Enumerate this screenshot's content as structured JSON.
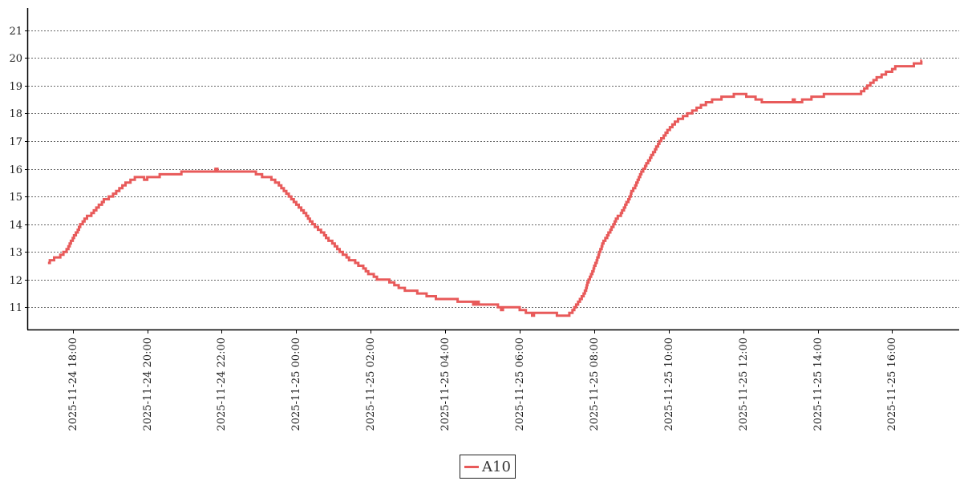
{
  "chart_data": {
    "type": "line",
    "title": "",
    "xlabel": "",
    "ylabel": "",
    "ylim": [
      10.2,
      21.8
    ],
    "xlim": [
      "2025-11-24 16:48",
      "2025-11-25 17:48"
    ],
    "yticks": [
      11,
      12,
      13,
      14,
      15,
      16,
      17,
      18,
      19,
      20,
      21
    ],
    "xticks": [
      "2025-11-24 18:00",
      "2025-11-24 20:00",
      "2025-11-24 22:00",
      "2025-11-25 00:00",
      "2025-11-25 02:00",
      "2025-11-25 04:00",
      "2025-11-25 06:00",
      "2025-11-25 08:00",
      "2025-11-25 10:00",
      "2025-11-25 12:00",
      "2025-11-25 14:00",
      "2025-11-25 16:00"
    ],
    "grid": "horizontal dotted",
    "legend_position": "bottom-center",
    "series": [
      {
        "name": "A10",
        "color": "#e85a5a",
        "step": true,
        "points": [
          [
            "2025-11-24 17:20",
            12.6
          ],
          [
            "2025-11-24 17:23",
            12.7
          ],
          [
            "2025-11-24 17:30",
            12.8
          ],
          [
            "2025-11-24 17:40",
            12.9
          ],
          [
            "2025-11-24 17:45",
            13.0
          ],
          [
            "2025-11-24 17:50",
            13.1
          ],
          [
            "2025-11-24 17:53",
            13.2
          ],
          [
            "2025-11-24 17:55",
            13.3
          ],
          [
            "2025-11-24 17:57",
            13.4
          ],
          [
            "2025-11-24 18:00",
            13.5
          ],
          [
            "2025-11-24 18:02",
            13.6
          ],
          [
            "2025-11-24 18:05",
            13.7
          ],
          [
            "2025-11-24 18:08",
            13.8
          ],
          [
            "2025-11-24 18:10",
            13.9
          ],
          [
            "2025-11-24 18:12",
            14.0
          ],
          [
            "2025-11-24 18:16",
            14.1
          ],
          [
            "2025-11-24 18:19",
            14.2
          ],
          [
            "2025-11-24 18:23",
            14.3
          ],
          [
            "2025-11-24 18:30",
            14.4
          ],
          [
            "2025-11-24 18:34",
            14.5
          ],
          [
            "2025-11-24 18:38",
            14.6
          ],
          [
            "2025-11-24 18:42",
            14.7
          ],
          [
            "2025-11-24 18:47",
            14.8
          ],
          [
            "2025-11-24 18:50",
            14.9
          ],
          [
            "2025-11-24 18:58",
            15.0
          ],
          [
            "2025-11-24 19:05",
            15.1
          ],
          [
            "2025-11-24 19:10",
            15.2
          ],
          [
            "2025-11-24 19:15",
            15.3
          ],
          [
            "2025-11-24 19:20",
            15.4
          ],
          [
            "2025-11-24 19:25",
            15.5
          ],
          [
            "2025-11-24 19:33",
            15.6
          ],
          [
            "2025-11-24 19:40",
            15.7
          ],
          [
            "2025-11-24 19:55",
            15.6
          ],
          [
            "2025-11-24 20:00",
            15.7
          ],
          [
            "2025-11-24 20:20",
            15.8
          ],
          [
            "2025-11-24 20:55",
            15.9
          ],
          [
            "2025-11-24 21:50",
            16.0
          ],
          [
            "2025-11-24 21:53",
            15.9
          ],
          [
            "2025-11-24 22:55",
            15.8
          ],
          [
            "2025-11-24 23:05",
            15.7
          ],
          [
            "2025-11-24 23:20",
            15.6
          ],
          [
            "2025-11-24 23:26",
            15.5
          ],
          [
            "2025-11-24 23:32",
            15.4
          ],
          [
            "2025-11-24 23:36",
            15.3
          ],
          [
            "2025-11-24 23:40",
            15.2
          ],
          [
            "2025-11-24 23:44",
            15.1
          ],
          [
            "2025-11-24 23:48",
            15.0
          ],
          [
            "2025-11-24 23:52",
            14.9
          ],
          [
            "2025-11-24 23:56",
            14.8
          ],
          [
            "2025-11-25 00:00",
            14.7
          ],
          [
            "2025-11-25 00:04",
            14.6
          ],
          [
            "2025-11-25 00:08",
            14.5
          ],
          [
            "2025-11-25 00:12",
            14.4
          ],
          [
            "2025-11-25 00:16",
            14.3
          ],
          [
            "2025-11-25 00:19",
            14.2
          ],
          [
            "2025-11-25 00:22",
            14.1
          ],
          [
            "2025-11-25 00:26",
            14.0
          ],
          [
            "2025-11-25 00:30",
            13.9
          ],
          [
            "2025-11-25 00:35",
            13.8
          ],
          [
            "2025-11-25 00:40",
            13.7
          ],
          [
            "2025-11-25 00:45",
            13.6
          ],
          [
            "2025-11-25 00:48",
            13.5
          ],
          [
            "2025-11-25 00:52",
            13.4
          ],
          [
            "2025-11-25 00:58",
            13.3
          ],
          [
            "2025-11-25 01:02",
            13.2
          ],
          [
            "2025-11-25 01:06",
            13.1
          ],
          [
            "2025-11-25 01:10",
            13.0
          ],
          [
            "2025-11-25 01:15",
            12.9
          ],
          [
            "2025-11-25 01:21",
            12.8
          ],
          [
            "2025-11-25 01:25",
            12.7
          ],
          [
            "2025-11-25 01:35",
            12.6
          ],
          [
            "2025-11-25 01:40",
            12.5
          ],
          [
            "2025-11-25 01:48",
            12.4
          ],
          [
            "2025-11-25 01:52",
            12.3
          ],
          [
            "2025-11-25 01:56",
            12.2
          ],
          [
            "2025-11-25 02:05",
            12.1
          ],
          [
            "2025-11-25 02:10",
            12.0
          ],
          [
            "2025-11-25 02:30",
            11.9
          ],
          [
            "2025-11-25 02:38",
            11.8
          ],
          [
            "2025-11-25 02:45",
            11.7
          ],
          [
            "2025-11-25 02:55",
            11.6
          ],
          [
            "2025-11-25 03:15",
            11.5
          ],
          [
            "2025-11-25 03:30",
            11.4
          ],
          [
            "2025-11-25 03:45",
            11.3
          ],
          [
            "2025-11-25 04:20",
            11.2
          ],
          [
            "2025-11-25 04:45",
            11.1
          ],
          [
            "2025-11-25 04:48",
            11.2
          ],
          [
            "2025-11-25 04:50",
            11.1
          ],
          [
            "2025-11-25 04:52",
            11.2
          ],
          [
            "2025-11-25 04:54",
            11.1
          ],
          [
            "2025-11-25 05:25",
            11.0
          ],
          [
            "2025-11-25 05:30",
            10.9
          ],
          [
            "2025-11-25 05:33",
            11.0
          ],
          [
            "2025-11-25 06:00",
            10.9
          ],
          [
            "2025-11-25 06:10",
            10.8
          ],
          [
            "2025-11-25 06:20",
            10.7
          ],
          [
            "2025-11-25 06:23",
            10.8
          ],
          [
            "2025-11-25 06:45",
            10.8
          ],
          [
            "2025-11-25 07:00",
            10.7
          ],
          [
            "2025-11-25 07:20",
            10.8
          ],
          [
            "2025-11-25 07:25",
            10.9
          ],
          [
            "2025-11-25 07:28",
            11.0
          ],
          [
            "2025-11-25 07:31",
            11.1
          ],
          [
            "2025-11-25 07:34",
            11.2
          ],
          [
            "2025-11-25 07:37",
            11.3
          ],
          [
            "2025-11-25 07:40",
            11.4
          ],
          [
            "2025-11-25 07:43",
            11.5
          ],
          [
            "2025-11-25 07:45",
            11.6
          ],
          [
            "2025-11-25 07:47",
            11.7
          ],
          [
            "2025-11-25 07:48",
            11.8
          ],
          [
            "2025-11-25 07:49",
            11.9
          ],
          [
            "2025-11-25 07:51",
            12.0
          ],
          [
            "2025-11-25 07:53",
            12.1
          ],
          [
            "2025-11-25 07:55",
            12.2
          ],
          [
            "2025-11-25 07:57",
            12.3
          ],
          [
            "2025-11-25 07:59",
            12.4
          ],
          [
            "2025-11-25 08:00",
            12.5
          ],
          [
            "2025-11-25 08:02",
            12.6
          ],
          [
            "2025-11-25 08:04",
            12.7
          ],
          [
            "2025-11-25 08:05",
            12.8
          ],
          [
            "2025-11-25 08:07",
            12.9
          ],
          [
            "2025-11-25 08:08",
            13.0
          ],
          [
            "2025-11-25 08:10",
            13.1
          ],
          [
            "2025-11-25 08:12",
            13.2
          ],
          [
            "2025-11-25 08:13",
            13.3
          ],
          [
            "2025-11-25 08:15",
            13.4
          ],
          [
            "2025-11-25 08:18",
            13.5
          ],
          [
            "2025-11-25 08:21",
            13.6
          ],
          [
            "2025-11-25 08:23",
            13.7
          ],
          [
            "2025-11-25 08:26",
            13.8
          ],
          [
            "2025-11-25 08:28",
            13.9
          ],
          [
            "2025-11-25 08:31",
            14.0
          ],
          [
            "2025-11-25 08:33",
            14.1
          ],
          [
            "2025-11-25 08:35",
            14.2
          ],
          [
            "2025-11-25 08:38",
            14.3
          ],
          [
            "2025-11-25 08:43",
            14.4
          ],
          [
            "2025-11-25 08:45",
            14.5
          ],
          [
            "2025-11-25 08:48",
            14.6
          ],
          [
            "2025-11-25 08:50",
            14.7
          ],
          [
            "2025-11-25 08:52",
            14.8
          ],
          [
            "2025-11-25 08:55",
            14.9
          ],
          [
            "2025-11-25 08:57",
            15.0
          ],
          [
            "2025-11-25 08:59",
            15.1
          ],
          [
            "2025-11-25 09:00",
            15.2
          ],
          [
            "2025-11-25 09:03",
            15.3
          ],
          [
            "2025-11-25 09:06",
            15.4
          ],
          [
            "2025-11-25 09:08",
            15.5
          ],
          [
            "2025-11-25 09:10",
            15.6
          ],
          [
            "2025-11-25 09:12",
            15.7
          ],
          [
            "2025-11-25 09:14",
            15.8
          ],
          [
            "2025-11-25 09:16",
            15.9
          ],
          [
            "2025-11-25 09:19",
            16.0
          ],
          [
            "2025-11-25 09:22",
            16.1
          ],
          [
            "2025-11-25 09:24",
            16.2
          ],
          [
            "2025-11-25 09:27",
            16.3
          ],
          [
            "2025-11-25 09:30",
            16.4
          ],
          [
            "2025-11-25 09:32",
            16.5
          ],
          [
            "2025-11-25 09:35",
            16.6
          ],
          [
            "2025-11-25 09:38",
            16.7
          ],
          [
            "2025-11-25 09:40",
            16.8
          ],
          [
            "2025-11-25 09:43",
            16.9
          ],
          [
            "2025-11-25 09:45",
            17.0
          ],
          [
            "2025-11-25 09:48",
            17.1
          ],
          [
            "2025-11-25 09:52",
            17.2
          ],
          [
            "2025-11-25 09:55",
            17.3
          ],
          [
            "2025-11-25 09:58",
            17.4
          ],
          [
            "2025-11-25 10:02",
            17.5
          ],
          [
            "2025-11-25 10:06",
            17.6
          ],
          [
            "2025-11-25 10:10",
            17.7
          ],
          [
            "2025-11-25 10:15",
            17.8
          ],
          [
            "2025-11-25 10:23",
            17.9
          ],
          [
            "2025-11-25 10:30",
            18.0
          ],
          [
            "2025-11-25 10:38",
            18.1
          ],
          [
            "2025-11-25 10:45",
            18.2
          ],
          [
            "2025-11-25 10:52",
            18.3
          ],
          [
            "2025-11-25 11:00",
            18.4
          ],
          [
            "2025-11-25 11:10",
            18.5
          ],
          [
            "2025-11-25 11:25",
            18.6
          ],
          [
            "2025-11-25 11:45",
            18.7
          ],
          [
            "2025-11-25 12:05",
            18.6
          ],
          [
            "2025-11-25 12:20",
            18.5
          ],
          [
            "2025-11-25 12:30",
            18.4
          ],
          [
            "2025-11-25 13:20",
            18.5
          ],
          [
            "2025-11-25 13:23",
            18.4
          ],
          [
            "2025-11-25 13:35",
            18.5
          ],
          [
            "2025-11-25 13:50",
            18.6
          ],
          [
            "2025-11-25 14:10",
            18.7
          ],
          [
            "2025-11-25 15:10",
            18.8
          ],
          [
            "2025-11-25 15:15",
            18.9
          ],
          [
            "2025-11-25 15:20",
            19.0
          ],
          [
            "2025-11-25 15:25",
            19.1
          ],
          [
            "2025-11-25 15:30",
            19.2
          ],
          [
            "2025-11-25 15:35",
            19.3
          ],
          [
            "2025-11-25 15:43",
            19.4
          ],
          [
            "2025-11-25 15:50",
            19.5
          ],
          [
            "2025-11-25 16:00",
            19.6
          ],
          [
            "2025-11-25 16:05",
            19.7
          ],
          [
            "2025-11-25 16:35",
            19.8
          ],
          [
            "2025-11-25 16:47",
            19.9
          ]
        ],
        "end": "2025-11-25 16:48"
      }
    ]
  }
}
